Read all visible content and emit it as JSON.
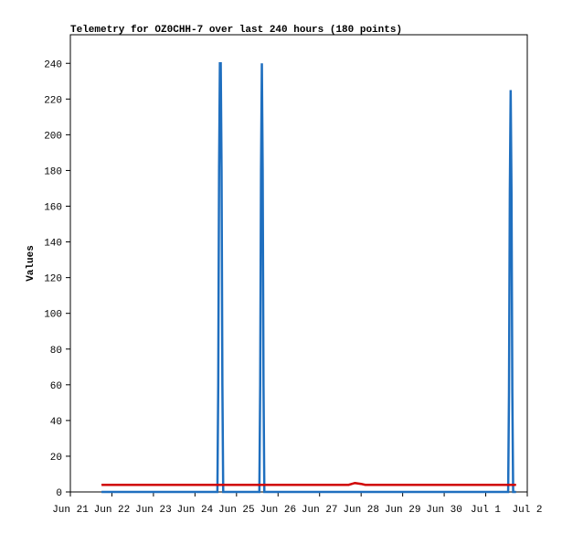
{
  "chart_data": {
    "type": "line",
    "title": "Telemetry for OZ0CHH-7 over last 240 hours (180 points)",
    "y_label": "Values",
    "xlim": [
      0,
      11
    ],
    "ylim": [
      0,
      256
    ],
    "xticks": [
      {
        "value": 0,
        "label": "Jun 21"
      },
      {
        "value": 1,
        "label": "Jun 22"
      },
      {
        "value": 2,
        "label": "Jun 23"
      },
      {
        "value": 3,
        "label": "Jun 24"
      },
      {
        "value": 4,
        "label": "Jun 25"
      },
      {
        "value": 5,
        "label": "Jun 26"
      },
      {
        "value": 6,
        "label": "Jun 27"
      },
      {
        "value": 7,
        "label": "Jun 28"
      },
      {
        "value": 8,
        "label": "Jun 29"
      },
      {
        "value": 9,
        "label": "Jun 30"
      },
      {
        "value": 10,
        "label": "Jul 1"
      },
      {
        "value": 11,
        "label": "Jul 2"
      }
    ],
    "yticks": [
      0,
      20,
      40,
      60,
      80,
      100,
      120,
      140,
      160,
      180,
      200,
      220,
      240
    ],
    "grid": false,
    "series": [
      {
        "color": "#1f6fbf",
        "x": [
          0.75,
          3.54,
          3.56,
          3.58,
          3.6,
          3.62,
          3.64,
          3.66,
          3.68,
          4.55,
          4.57,
          4.59,
          4.61,
          4.63,
          4.65,
          4.67,
          10.54,
          10.56,
          10.58,
          10.6,
          10.62,
          10.64,
          10.66,
          10.73
        ],
        "values": [
          0,
          0,
          60,
          180,
          240,
          240,
          180,
          60,
          0,
          0,
          60,
          180,
          240,
          180,
          60,
          0,
          0,
          56,
          168,
          225,
          168,
          56,
          0,
          0
        ]
      },
      {
        "color": "#d00000",
        "x": [
          0.75,
          6.7,
          6.85,
          7.0,
          7.1,
          10.73
        ],
        "values": [
          4,
          4,
          5,
          4.5,
          4,
          4
        ]
      }
    ]
  }
}
